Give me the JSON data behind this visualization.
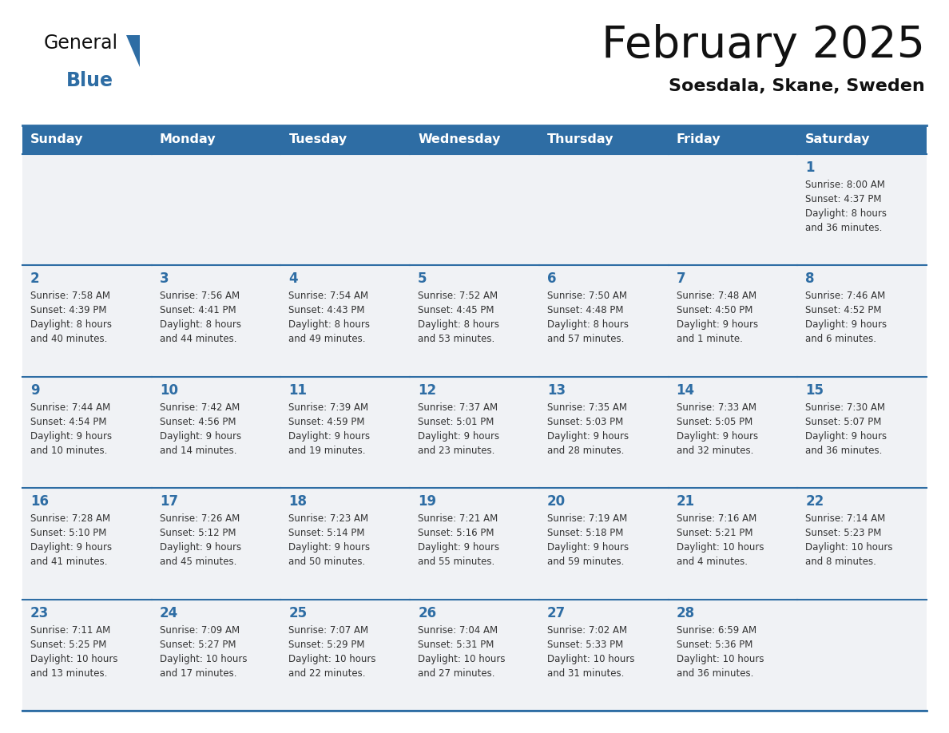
{
  "title": "February 2025",
  "subtitle": "Soesdala, Skane, Sweden",
  "header_bg": "#2E6DA4",
  "header_text_color": "#FFFFFF",
  "cell_bg": "#F0F2F5",
  "border_color": "#2E6DA4",
  "border_color_light": "#AAAACC",
  "day_headers": [
    "Sunday",
    "Monday",
    "Tuesday",
    "Wednesday",
    "Thursday",
    "Friday",
    "Saturday"
  ],
  "title_color": "#111111",
  "subtitle_color": "#111111",
  "day_num_color": "#2E6DA4",
  "cell_text_color": "#333333",
  "logo_general_color": "#111111",
  "logo_blue_color": "#2E6DA4",
  "calendar": [
    [
      {
        "day": "",
        "info": ""
      },
      {
        "day": "",
        "info": ""
      },
      {
        "day": "",
        "info": ""
      },
      {
        "day": "",
        "info": ""
      },
      {
        "day": "",
        "info": ""
      },
      {
        "day": "",
        "info": ""
      },
      {
        "day": "1",
        "info": "Sunrise: 8:00 AM\nSunset: 4:37 PM\nDaylight: 8 hours\nand 36 minutes."
      }
    ],
    [
      {
        "day": "2",
        "info": "Sunrise: 7:58 AM\nSunset: 4:39 PM\nDaylight: 8 hours\nand 40 minutes."
      },
      {
        "day": "3",
        "info": "Sunrise: 7:56 AM\nSunset: 4:41 PM\nDaylight: 8 hours\nand 44 minutes."
      },
      {
        "day": "4",
        "info": "Sunrise: 7:54 AM\nSunset: 4:43 PM\nDaylight: 8 hours\nand 49 minutes."
      },
      {
        "day": "5",
        "info": "Sunrise: 7:52 AM\nSunset: 4:45 PM\nDaylight: 8 hours\nand 53 minutes."
      },
      {
        "day": "6",
        "info": "Sunrise: 7:50 AM\nSunset: 4:48 PM\nDaylight: 8 hours\nand 57 minutes."
      },
      {
        "day": "7",
        "info": "Sunrise: 7:48 AM\nSunset: 4:50 PM\nDaylight: 9 hours\nand 1 minute."
      },
      {
        "day": "8",
        "info": "Sunrise: 7:46 AM\nSunset: 4:52 PM\nDaylight: 9 hours\nand 6 minutes."
      }
    ],
    [
      {
        "day": "9",
        "info": "Sunrise: 7:44 AM\nSunset: 4:54 PM\nDaylight: 9 hours\nand 10 minutes."
      },
      {
        "day": "10",
        "info": "Sunrise: 7:42 AM\nSunset: 4:56 PM\nDaylight: 9 hours\nand 14 minutes."
      },
      {
        "day": "11",
        "info": "Sunrise: 7:39 AM\nSunset: 4:59 PM\nDaylight: 9 hours\nand 19 minutes."
      },
      {
        "day": "12",
        "info": "Sunrise: 7:37 AM\nSunset: 5:01 PM\nDaylight: 9 hours\nand 23 minutes."
      },
      {
        "day": "13",
        "info": "Sunrise: 7:35 AM\nSunset: 5:03 PM\nDaylight: 9 hours\nand 28 minutes."
      },
      {
        "day": "14",
        "info": "Sunrise: 7:33 AM\nSunset: 5:05 PM\nDaylight: 9 hours\nand 32 minutes."
      },
      {
        "day": "15",
        "info": "Sunrise: 7:30 AM\nSunset: 5:07 PM\nDaylight: 9 hours\nand 36 minutes."
      }
    ],
    [
      {
        "day": "16",
        "info": "Sunrise: 7:28 AM\nSunset: 5:10 PM\nDaylight: 9 hours\nand 41 minutes."
      },
      {
        "day": "17",
        "info": "Sunrise: 7:26 AM\nSunset: 5:12 PM\nDaylight: 9 hours\nand 45 minutes."
      },
      {
        "day": "18",
        "info": "Sunrise: 7:23 AM\nSunset: 5:14 PM\nDaylight: 9 hours\nand 50 minutes."
      },
      {
        "day": "19",
        "info": "Sunrise: 7:21 AM\nSunset: 5:16 PM\nDaylight: 9 hours\nand 55 minutes."
      },
      {
        "day": "20",
        "info": "Sunrise: 7:19 AM\nSunset: 5:18 PM\nDaylight: 9 hours\nand 59 minutes."
      },
      {
        "day": "21",
        "info": "Sunrise: 7:16 AM\nSunset: 5:21 PM\nDaylight: 10 hours\nand 4 minutes."
      },
      {
        "day": "22",
        "info": "Sunrise: 7:14 AM\nSunset: 5:23 PM\nDaylight: 10 hours\nand 8 minutes."
      }
    ],
    [
      {
        "day": "23",
        "info": "Sunrise: 7:11 AM\nSunset: 5:25 PM\nDaylight: 10 hours\nand 13 minutes."
      },
      {
        "day": "24",
        "info": "Sunrise: 7:09 AM\nSunset: 5:27 PM\nDaylight: 10 hours\nand 17 minutes."
      },
      {
        "day": "25",
        "info": "Sunrise: 7:07 AM\nSunset: 5:29 PM\nDaylight: 10 hours\nand 22 minutes."
      },
      {
        "day": "26",
        "info": "Sunrise: 7:04 AM\nSunset: 5:31 PM\nDaylight: 10 hours\nand 27 minutes."
      },
      {
        "day": "27",
        "info": "Sunrise: 7:02 AM\nSunset: 5:33 PM\nDaylight: 10 hours\nand 31 minutes."
      },
      {
        "day": "28",
        "info": "Sunrise: 6:59 AM\nSunset: 5:36 PM\nDaylight: 10 hours\nand 36 minutes."
      },
      {
        "day": "",
        "info": ""
      }
    ]
  ]
}
